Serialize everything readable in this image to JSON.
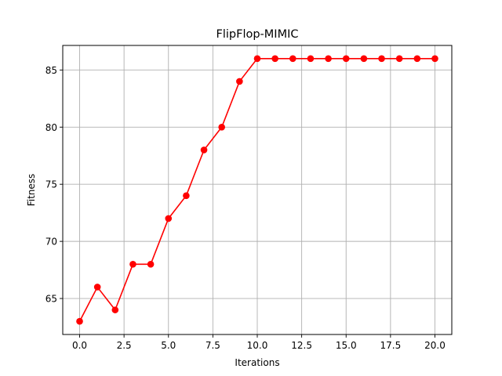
{
  "chart_data": {
    "type": "line",
    "title": "FlipFlop-MIMIC",
    "xlabel": "Iterations",
    "ylabel": "Fitness",
    "xlim": [
      -0.95,
      20.95
    ],
    "ylim": [
      61.85,
      87.15
    ],
    "xticks": [
      0.0,
      2.5,
      5.0,
      7.5,
      10.0,
      12.5,
      15.0,
      17.5,
      20.0
    ],
    "xtick_labels": [
      "0.0",
      "2.5",
      "5.0",
      "7.5",
      "10.0",
      "12.5",
      "15.0",
      "17.5",
      "20.0"
    ],
    "yticks": [
      65,
      70,
      75,
      80,
      85
    ],
    "ytick_labels": [
      "65",
      "70",
      "75",
      "80",
      "85"
    ],
    "grid": true,
    "series": [
      {
        "color": "#ff0000",
        "marker": "circle",
        "x": [
          0,
          1,
          2,
          3,
          4,
          5,
          6,
          7,
          8,
          9,
          10,
          11,
          12,
          13,
          14,
          15,
          16,
          17,
          18,
          19,
          20
        ],
        "y": [
          63,
          66,
          64,
          68,
          68,
          72,
          74,
          78,
          80,
          84,
          86,
          86,
          86,
          86,
          86,
          86,
          86,
          86,
          86,
          86,
          86
        ]
      }
    ]
  }
}
